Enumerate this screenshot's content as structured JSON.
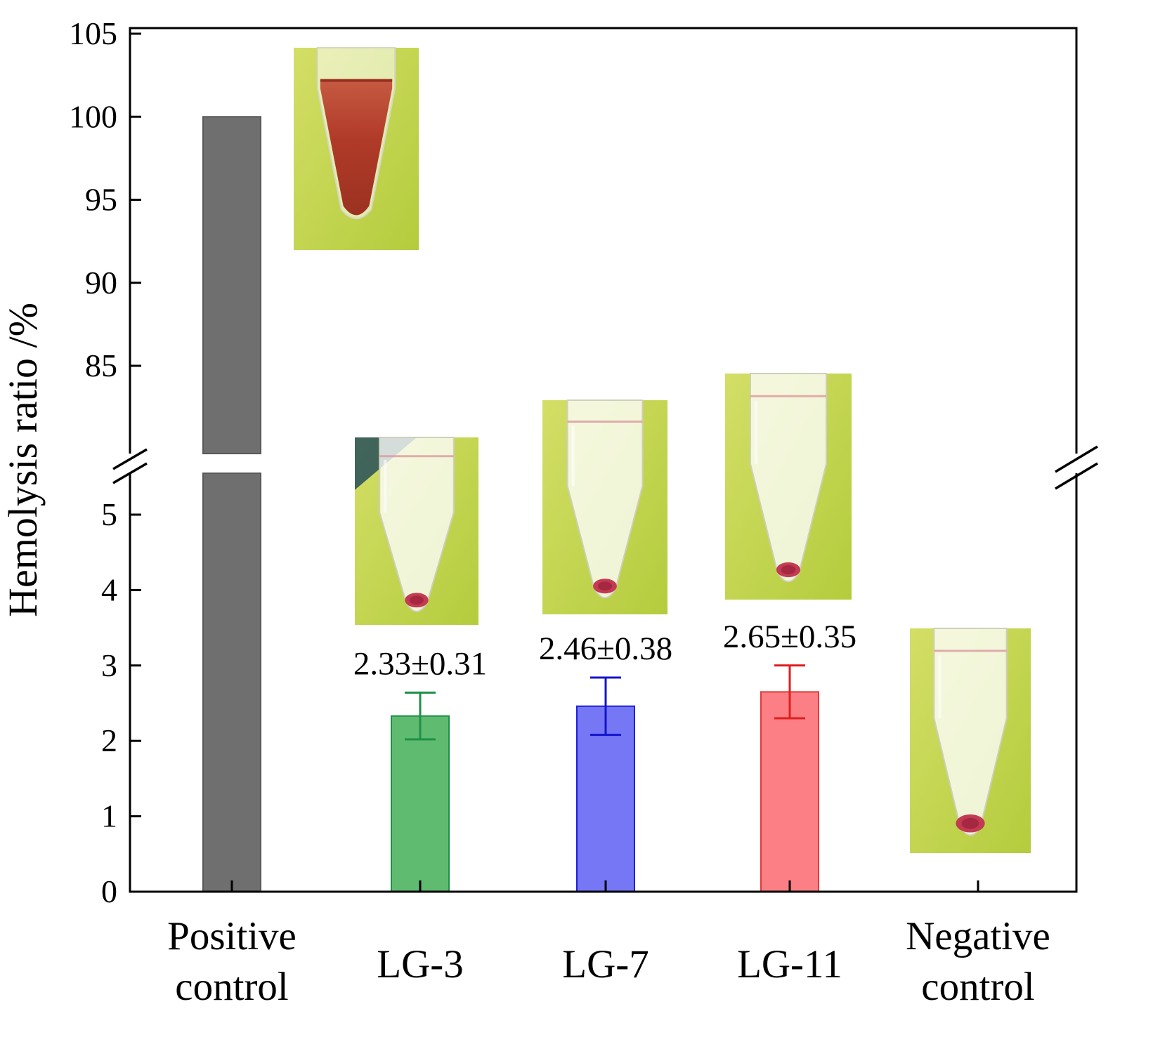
{
  "chart_data": {
    "type": "bar",
    "title": "",
    "xlabel": "",
    "ylabel": "Hemolysis ratio /%",
    "categories": [
      "Positive\ncontrol",
      "LG-3",
      "LG-7",
      "LG-11",
      "Negative\ncontrol"
    ],
    "series": [
      {
        "name": "Hemolysis ratio /%",
        "values": [
          100,
          2.33,
          2.46,
          2.65,
          0
        ],
        "errors": [
          0,
          0.31,
          0.38,
          0.35,
          0
        ]
      }
    ],
    "bar_fill_colors": [
      "#6f6f6f",
      "#5fbb6f",
      "#7577f5",
      "#fb7f84",
      "none"
    ],
    "bar_edge_colors": [
      "#595959",
      "#1f9047",
      "#2020d8",
      "#e23a3a",
      "none"
    ],
    "error_bar_colors": [
      "#595959",
      "#1f9047",
      "#1414cc",
      "#e01f1f",
      "none"
    ],
    "annotations": [
      {
        "category": "LG-3",
        "text": "2.33±0.31"
      },
      {
        "category": "LG-7",
        "text": "2.46±0.38"
      },
      {
        "category": "LG-11",
        "text": "2.65±0.35"
      }
    ],
    "y_axis": {
      "label": "Hemolysis ratio /%",
      "broken": true,
      "lower_ticks": [
        0,
        1,
        2,
        3,
        4,
        5
      ],
      "upper_ticks": [
        85,
        90,
        95,
        100,
        105
      ],
      "lower_range": [
        0,
        5.6
      ],
      "upper_range": [
        83.3,
        105.3
      ]
    },
    "grid": false,
    "legend": "none"
  },
  "photos": [
    {
      "name": "positive-control-tube-photo",
      "appearance": "microcentrifuge tube with red hemolyzed suspension on yellow-green background"
    },
    {
      "name": "lg3-tube-photo",
      "appearance": "microcentrifuge tube with clear supernatant and small red pellet"
    },
    {
      "name": "lg7-tube-photo",
      "appearance": "microcentrifuge tube with clear supernatant and small red pellet"
    },
    {
      "name": "lg11-tube-photo",
      "appearance": "microcentrifuge tube with clear supernatant and small red pellet"
    },
    {
      "name": "negative-control-tube-photo",
      "appearance": "microcentrifuge tube with clear supernatant and red pellet"
    }
  ]
}
